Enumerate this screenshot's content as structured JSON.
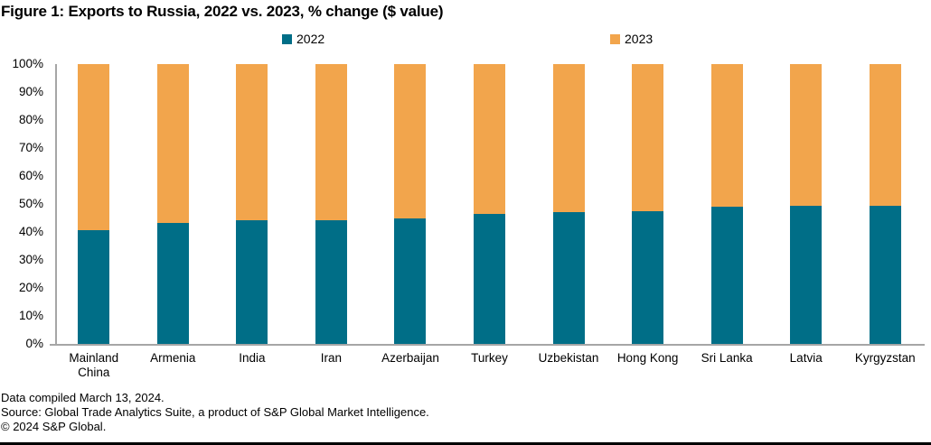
{
  "title": "Figure 1: Exports to Russia, 2022 vs. 2023, % change ($ value)",
  "legend": [
    {
      "label": "2022",
      "color": "#006E87"
    },
    {
      "label": "2023",
      "color": "#F2A54C"
    }
  ],
  "footer": {
    "line1": "Data compiled March 13, 2024.",
    "line2": "Source: Global Trade Analytics Suite, a product of S&P Global Market Intelligence.",
    "line3": "© 2024 S&P Global."
  },
  "colors": {
    "series_2022": "#006E87",
    "series_2023": "#F2A54C",
    "axis": "#A6A6A6",
    "text": "#000000",
    "background": "#FFFFFF"
  },
  "chart_data": {
    "type": "bar",
    "stacked": true,
    "stack_mode": "percent",
    "title": "Figure 1: Exports to Russia, 2022 vs. 2023, % change ($ value)",
    "xlabel": "",
    "ylabel": "",
    "ylim": [
      0,
      100
    ],
    "ytick_step": 10,
    "yticks": [
      "0%",
      "10%",
      "20%",
      "30%",
      "40%",
      "50%",
      "60%",
      "70%",
      "80%",
      "90%",
      "100%"
    ],
    "grid": false,
    "legend_position": "top",
    "categories": [
      "Mainland China",
      "Armenia",
      "India",
      "Iran",
      "Azerbaijan",
      "Turkey",
      "Uzbekistan",
      "Hong Kong",
      "Sri Lanka",
      "Latvia",
      "Kyrgyzstan"
    ],
    "series": [
      {
        "name": "2022",
        "color": "#006E87",
        "values": [
          40.6,
          43.1,
          44.2,
          44.2,
          44.7,
          46.4,
          47.0,
          47.5,
          49.0,
          49.2,
          49.3
        ]
      },
      {
        "name": "2023",
        "color": "#F2A54C",
        "values": [
          59.4,
          56.9,
          55.8,
          55.8,
          55.3,
          53.6,
          53.0,
          52.5,
          51.0,
          50.8,
          50.7
        ]
      }
    ]
  }
}
